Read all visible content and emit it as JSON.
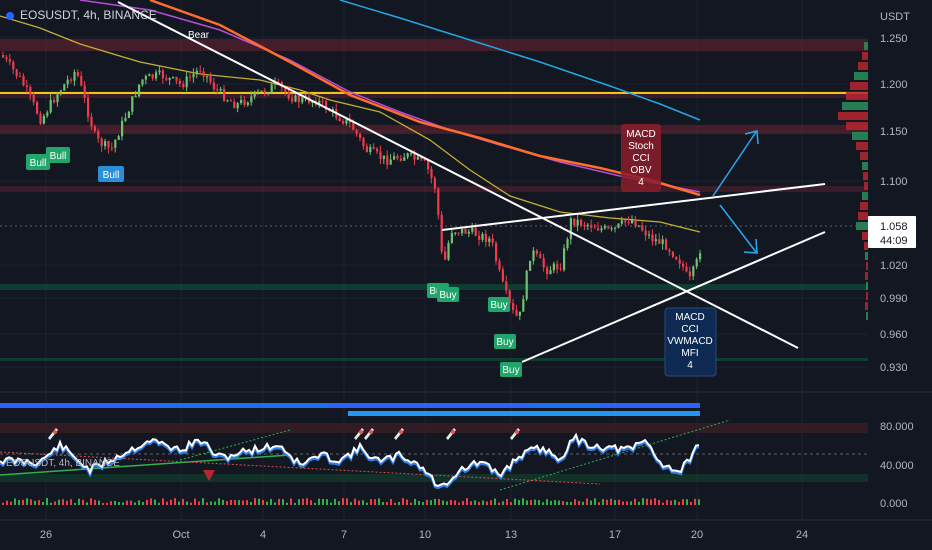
{
  "header": {
    "symbol_line": "EOSUSDT, 4h, BINANCE",
    "currency": "USDT",
    "oscillator_title": "EOSUSDT, 4h, BINANCE"
  },
  "price_axis": {
    "ticks": [
      "1.250",
      "1.200",
      "1.150",
      "1.100",
      "1.058",
      "1.020",
      "0.990",
      "0.960",
      "0.930"
    ],
    "current_price": "1.058",
    "countdown": "44:09"
  },
  "osc_axis": {
    "ticks": [
      "80.000",
      "40.000",
      "0.000"
    ]
  },
  "time_axis": {
    "ticks": [
      "26",
      "Oct",
      "4",
      "7",
      "10",
      "13",
      "17",
      "20",
      "24"
    ]
  },
  "signals": {
    "bear": "Bear",
    "bull": [
      "Bull",
      "Bull",
      "Bull"
    ],
    "buy": [
      "Buy",
      "Buy",
      "Buy",
      "Buy",
      "Buy"
    ],
    "divergence_top": [
      "MACD",
      "Stoch",
      "CCI",
      "OBV",
      "4"
    ],
    "divergence_bottom": [
      "MACD",
      "CCI",
      "VWMACD",
      "MFI",
      "4"
    ]
  },
  "colors": {
    "background": "#131722",
    "up": "#6fc26f",
    "down": "#ef3b4a",
    "resistance": "#f0c419",
    "ema_orange": "#ff6d2d",
    "ema_purple": "#b84dd8",
    "ema_blue": "#21a7e4",
    "ema_yellow": "#c5b030",
    "accent": "#2962ff"
  },
  "icons": {
    "rocket": "rocket-icon",
    "down_triangle": "triangle-down-icon",
    "arrow_up": "arrow-up-right-icon",
    "arrow_down": "arrow-down-right-icon"
  }
}
